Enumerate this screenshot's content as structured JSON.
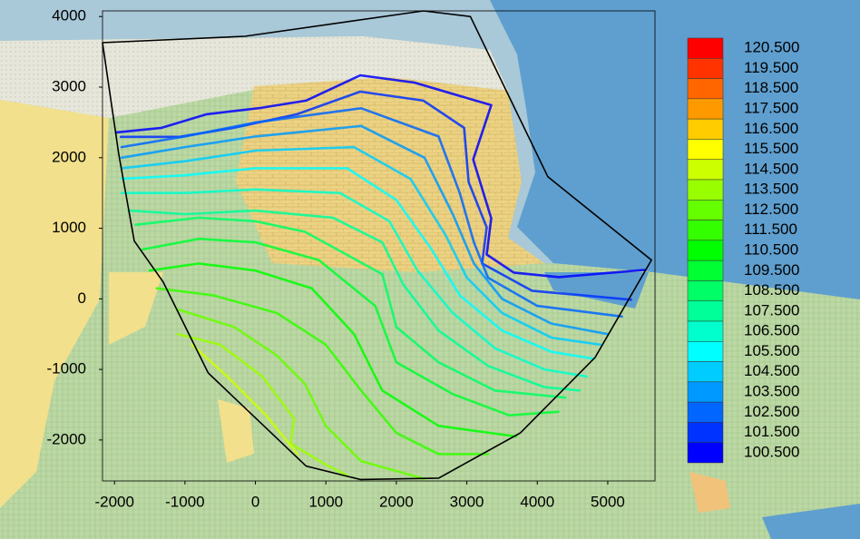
{
  "chart_data": {
    "type": "contour",
    "xlim": [
      -2170,
      5670
    ],
    "ylim": [
      -2580,
      4080
    ],
    "xticks": [
      -2000,
      -1000,
      0,
      1000,
      2000,
      3000,
      4000,
      5000
    ],
    "yticks": [
      -2000,
      -1000,
      0,
      1000,
      2000,
      3000,
      4000
    ],
    "colorbar": [
      {
        "value": 120.5,
        "label": "120.500"
      },
      {
        "value": 119.5,
        "label": "119.500"
      },
      {
        "value": 118.5,
        "label": "118.500"
      },
      {
        "value": 117.5,
        "label": "117.500"
      },
      {
        "value": 116.5,
        "label": "116.500"
      },
      {
        "value": 115.5,
        "label": "115.500"
      },
      {
        "value": 114.5,
        "label": "114.500"
      },
      {
        "value": 113.5,
        "label": "113.500"
      },
      {
        "value": 112.5,
        "label": "112.500"
      },
      {
        "value": 111.5,
        "label": "111.500"
      },
      {
        "value": 110.5,
        "label": "110.500"
      },
      {
        "value": 109.5,
        "label": "109.500"
      },
      {
        "value": 108.5,
        "label": "108.500"
      },
      {
        "value": 107.5,
        "label": "107.500"
      },
      {
        "value": 106.5,
        "label": "106.500"
      },
      {
        "value": 105.5,
        "label": "105.500"
      },
      {
        "value": 104.5,
        "label": "104.500"
      },
      {
        "value": 103.5,
        "label": "103.500"
      },
      {
        "value": 102.5,
        "label": "102.500"
      },
      {
        "value": 101.5,
        "label": "101.500"
      },
      {
        "value": 100.5,
        "label": "100.500"
      }
    ],
    "colorbar_colors": [
      "#ff0000",
      "#ff3300",
      "#ff6600",
      "#ff9900",
      "#ffcc00",
      "#ffff00",
      "#ccff00",
      "#99ff00",
      "#66ff00",
      "#33ff00",
      "#00ff00",
      "#00ff33",
      "#00ff66",
      "#00ff99",
      "#00ffcc",
      "#00ffff",
      "#00ccff",
      "#0099ff",
      "#0066ff",
      "#0033ff",
      "#0000ff"
    ],
    "boundary": {
      "x": [
        -2170,
        -150,
        2385,
        3050,
        4150,
        5620,
        4820,
        3760,
        2600,
        1490,
        720,
        -670,
        -1310,
        -1720,
        -1940,
        -2170
      ],
      "y": [
        3630,
        3720,
        4080,
        4000,
        1730,
        550,
        -830,
        -1900,
        -2540,
        -2560,
        -2370,
        -1050,
        240,
        820,
        2050,
        3630
      ]
    },
    "contours": [
      {
        "level": 101,
        "x": [
          -1974,
          -1333,
          -692,
          77,
          718,
          1487,
          2256,
          3346,
          3090,
          3346,
          3282,
          3667,
          4308,
          5526
        ],
        "y": [
          2359,
          2423,
          2615,
          2705,
          2808,
          3167,
          3064,
          2744,
          1974,
          1141,
          628,
          372,
          308,
          410
        ]
      },
      {
        "level": 102,
        "x": [
          -1910,
          -1077,
          -308,
          590,
          1487,
          2385,
          2962,
          3026,
          3282,
          3218,
          3923,
          5333
        ],
        "y": [
          2295,
          2295,
          2423,
          2615,
          2936,
          2808,
          2423,
          1654,
          1013,
          500,
          115,
          -13
        ]
      },
      {
        "level": 103,
        "x": [
          -1900,
          -1000,
          0,
          1500,
          2600,
          2900,
          3100,
          3300,
          4000,
          5200
        ],
        "y": [
          2150,
          2300,
          2500,
          2700,
          2300,
          1500,
          800,
          300,
          -100,
          -250
        ]
      },
      {
        "level": 104,
        "x": [
          -1900,
          -1000,
          0,
          1500,
          2400,
          2800,
          3100,
          3500,
          4200,
          5000
        ],
        "y": [
          2000,
          2150,
          2300,
          2450,
          2000,
          1200,
          500,
          0,
          -350,
          -500
        ]
      },
      {
        "level": 105,
        "x": [
          -1900,
          -1000,
          0,
          1400,
          2200,
          2700,
          3000,
          3500,
          4200,
          4900
        ],
        "y": [
          1850,
          1950,
          2100,
          2150,
          1700,
          900,
          300,
          -200,
          -550,
          -650
        ]
      },
      {
        "level": 106,
        "x": [
          -1900,
          -1000,
          0,
          1300,
          2000,
          2500,
          2900,
          3500,
          4200,
          4800
        ],
        "y": [
          1700,
          1750,
          1850,
          1850,
          1400,
          700,
          50,
          -450,
          -750,
          -850
        ]
      },
      {
        "level": 107,
        "x": [
          -1900,
          -1000,
          0,
          1200,
          1900,
          2300,
          2800,
          3400,
          4100,
          4700
        ],
        "y": [
          1500,
          1500,
          1550,
          1500,
          1100,
          400,
          -200,
          -700,
          -1000,
          -1100
        ]
      },
      {
        "level": 108,
        "x": [
          -1800,
          -1000,
          0,
          1100,
          1800,
          2100,
          2600,
          3300,
          4100,
          4600
        ],
        "y": [
          1250,
          1200,
          1250,
          1150,
          800,
          200,
          -450,
          -950,
          -1250,
          -1300
        ]
      },
      {
        "level": 109,
        "x": [
          -1700,
          -800,
          0,
          700,
          1800,
          2000,
          2600,
          3400,
          4400
        ],
        "y": [
          1050,
          1150,
          1100,
          950,
          350,
          -400,
          -900,
          -1300,
          -1400
        ]
      },
      {
        "level": 110,
        "x": [
          -1600,
          -800,
          0,
          900,
          1700,
          2000,
          2800,
          3600,
          4300
        ],
        "y": [
          700,
          850,
          800,
          550,
          -100,
          -900,
          -1350,
          -1650,
          -1600
        ]
      },
      {
        "level": 111,
        "x": [
          -1500,
          -800,
          0,
          800,
          1400,
          1800,
          2600,
          3700
        ],
        "y": [
          400,
          500,
          400,
          150,
          -500,
          -1300,
          -1800,
          -1950
        ]
      },
      {
        "level": 112,
        "x": [
          -1400,
          -600,
          300,
          1000,
          1500,
          2000,
          2600,
          3300
        ],
        "y": [
          150,
          50,
          -200,
          -650,
          -1300,
          -1900,
          -2200,
          -2200
        ]
      },
      {
        "level": 113,
        "x": [
          -1100,
          -300,
          300,
          700,
          1000,
          1500,
          2400
        ],
        "y": [
          -150,
          -400,
          -800,
          -1200,
          -1800,
          -2300,
          -2550
        ]
      },
      {
        "level": 114,
        "x": [
          -1100,
          -500,
          100,
          550,
          500,
          1000,
          1300
        ],
        "y": [
          -500,
          -650,
          -1100,
          -1700,
          -2050,
          -2350,
          -2500
        ]
      },
      {
        "level": 115,
        "x": [
          -900,
          -400,
          150,
          600
        ],
        "y": [
          -650,
          -1100,
          -1650,
          -2200
        ]
      }
    ]
  }
}
